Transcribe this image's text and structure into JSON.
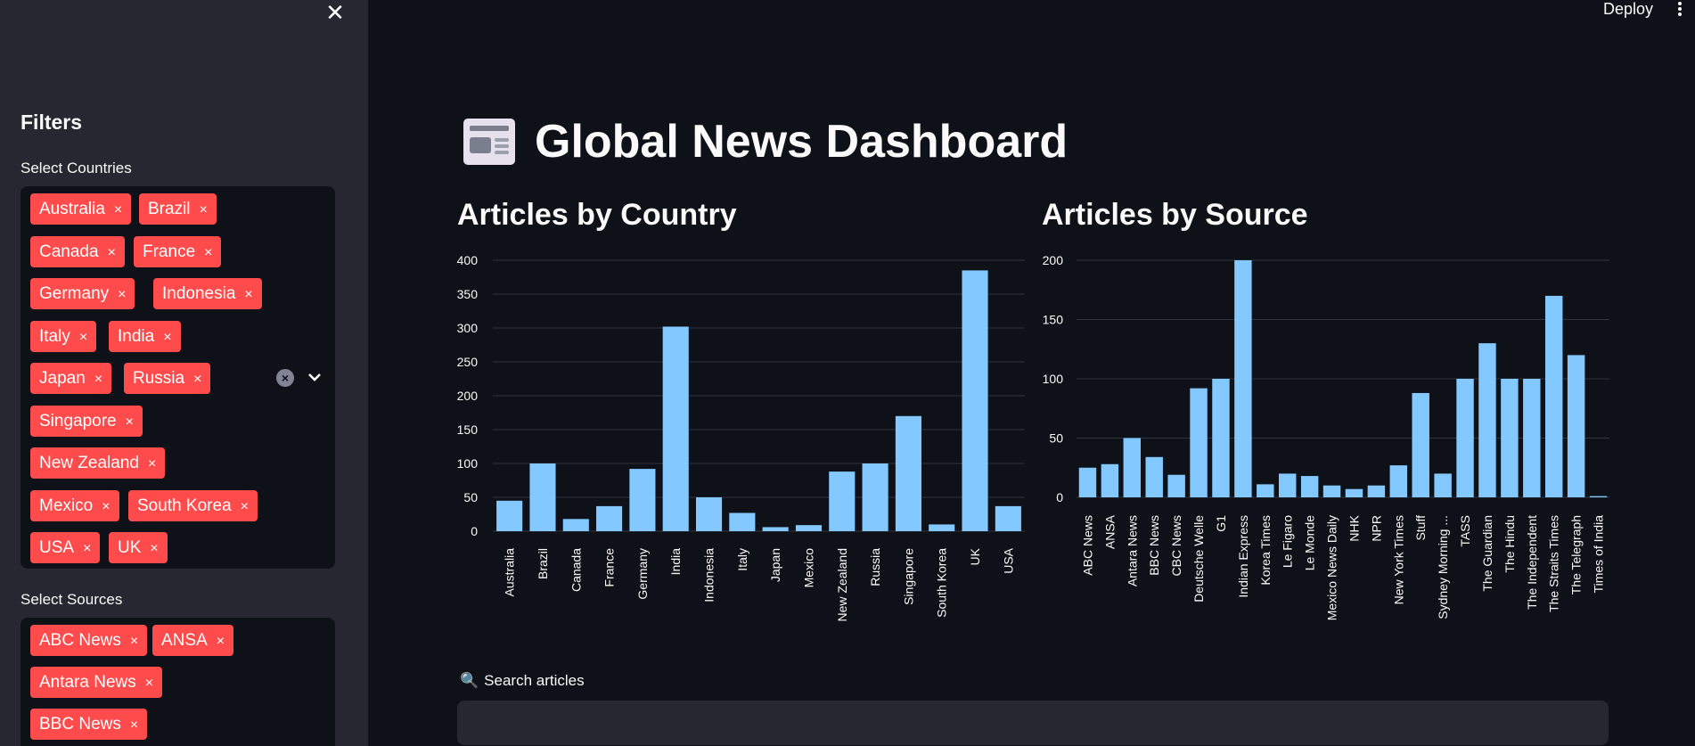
{
  "header": {
    "deploy_label": "Deploy"
  },
  "sidebar": {
    "title": "Filters",
    "countries_label": "Select Countries",
    "countries": [
      "Australia",
      "Brazil",
      "Canada",
      "France",
      "Germany",
      "Indonesia",
      "Italy",
      "India",
      "Japan",
      "Russia",
      "Singapore",
      "New Zealand",
      "Mexico",
      "South Korea",
      "USA",
      "UK"
    ],
    "sources_label": "Select Sources",
    "sources": [
      "ABC News",
      "ANSA",
      "Antara News",
      "BBC News"
    ],
    "remove_glyph": "×"
  },
  "main": {
    "title": "Global News Dashboard",
    "search_label": "Search articles",
    "search_value": ""
  },
  "colors": {
    "bar": "#83c9ff",
    "tag": "#ff4b4b",
    "bg": "#0e1117",
    "sidebar_bg": "#262730"
  },
  "chart_data": [
    {
      "type": "bar",
      "title": "Articles by Country",
      "categories": [
        "Australia",
        "Brazil",
        "Canada",
        "France",
        "Germany",
        "India",
        "Indonesia",
        "Italy",
        "Japan",
        "Mexico",
        "New Zealand",
        "Russia",
        "Singapore",
        "South Korea",
        "UK",
        "USA"
      ],
      "values": [
        45,
        100,
        18,
        37,
        92,
        302,
        50,
        27,
        6,
        9,
        88,
        100,
        170,
        10,
        385,
        37
      ],
      "ylim": [
        0,
        400
      ],
      "yticks": [
        0,
        50,
        100,
        150,
        200,
        250,
        300,
        350,
        400
      ],
      "grid": true
    },
    {
      "type": "bar",
      "title": "Articles by Source",
      "categories": [
        "ABC News",
        "ANSA",
        "Antara News",
        "BBC News",
        "CBC News",
        "Deutsche Welle",
        "G1",
        "Indian Express",
        "Korea Times",
        "Le Figaro",
        "Le Monde",
        "Mexico News Daily",
        "NHK",
        "NPR",
        "New York Times",
        "Stuff",
        "Sydney Morning ...",
        "TASS",
        "The Guardian",
        "The Hindu",
        "The Independent",
        "The Straits Times",
        "The Telegraph",
        "Times of India"
      ],
      "values": [
        25,
        28,
        50,
        34,
        19,
        92,
        100,
        200,
        11,
        20,
        18,
        10,
        7,
        10,
        27,
        88,
        20,
        100,
        130,
        100,
        100,
        170,
        120,
        1
      ],
      "ylim": [
        0,
        200
      ],
      "yticks": [
        0,
        50,
        100,
        150,
        200
      ],
      "grid": true
    }
  ]
}
